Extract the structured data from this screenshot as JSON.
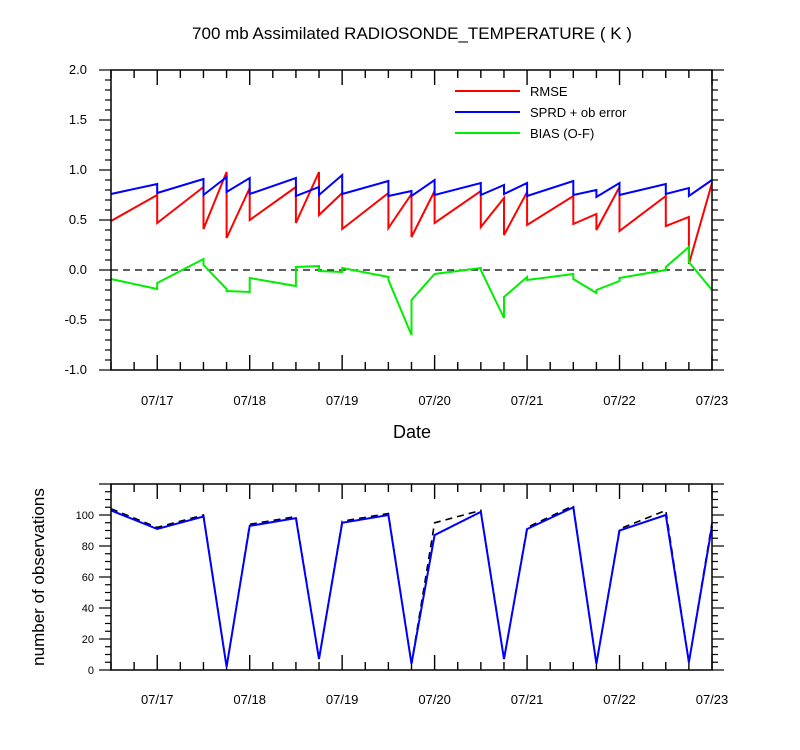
{
  "chart_data": [
    {
      "type": "line",
      "title": "700 mb Assimilated RADIOSONDE_TEMPERATURE ( K )",
      "xlabel": "Date",
      "ylabel": "",
      "xlim": [
        16.5,
        23.0
      ],
      "ylim": [
        -1.0,
        2.0
      ],
      "yticks": [
        -1.0,
        -0.5,
        0.0,
        0.5,
        1.0,
        1.5,
        2.0
      ],
      "ytick_labels": [
        "-1.0",
        "-0.5",
        "0.0",
        "0.5",
        "1.0",
        "1.5",
        "2.0"
      ],
      "xticks": [
        17,
        18,
        19,
        20,
        21,
        22,
        23
      ],
      "xtick_labels": [
        "07/17",
        "07/18",
        "07/19",
        "07/20",
        "07/21",
        "07/22",
        "07/23"
      ],
      "zero_line": {
        "value": 0.0,
        "style": "dashed"
      },
      "legend_position": "top-right",
      "series": [
        {
          "name": "RMSE",
          "color": "#ff0000",
          "x": [
            16.5,
            17.0,
            17.0,
            17.5,
            17.5,
            17.75,
            17.75,
            18.0,
            18.0,
            18.5,
            18.5,
            18.75,
            18.75,
            19.0,
            19.0,
            19.5,
            19.5,
            19.75,
            19.75,
            20.0,
            20.0,
            20.5,
            20.5,
            20.75,
            20.75,
            21.0,
            21.0,
            21.5,
            21.5,
            21.75,
            21.75,
            22.0,
            22.0,
            22.5,
            22.5,
            22.75,
            22.75,
            23.0
          ],
          "y": [
            0.49,
            0.75,
            0.47,
            0.83,
            0.41,
            0.98,
            0.32,
            0.82,
            0.5,
            0.83,
            0.47,
            0.98,
            0.55,
            0.77,
            0.41,
            0.77,
            0.42,
            0.76,
            0.33,
            0.79,
            0.47,
            0.79,
            0.43,
            0.72,
            0.35,
            0.78,
            0.45,
            0.74,
            0.46,
            0.56,
            0.4,
            0.83,
            0.39,
            0.74,
            0.44,
            0.53,
            0.06,
            0.87
          ]
        },
        {
          "name": "SPRD + ob error",
          "color": "#0000ff",
          "x": [
            16.5,
            17.0,
            17.0,
            17.5,
            17.5,
            17.75,
            17.75,
            18.0,
            18.0,
            18.5,
            18.5,
            18.75,
            18.75,
            19.0,
            19.0,
            19.5,
            19.5,
            19.75,
            19.75,
            20.0,
            20.0,
            20.5,
            20.5,
            20.75,
            20.75,
            21.0,
            21.0,
            21.5,
            21.5,
            21.75,
            21.75,
            22.0,
            22.0,
            22.5,
            22.5,
            22.75,
            22.75,
            23.0
          ],
          "y": [
            0.76,
            0.86,
            0.77,
            0.91,
            0.75,
            0.93,
            0.78,
            0.92,
            0.76,
            0.92,
            0.74,
            0.83,
            0.75,
            0.95,
            0.76,
            0.89,
            0.74,
            0.79,
            0.74,
            0.9,
            0.75,
            0.87,
            0.75,
            0.85,
            0.76,
            0.87,
            0.74,
            0.89,
            0.75,
            0.8,
            0.73,
            0.87,
            0.75,
            0.86,
            0.76,
            0.82,
            0.74,
            0.9
          ]
        },
        {
          "name": "BIAS (O-F)",
          "color": "#00ee00",
          "x": [
            16.5,
            17.0,
            17.0,
            17.5,
            17.5,
            17.75,
            17.75,
            18.0,
            18.0,
            18.5,
            18.5,
            18.75,
            18.75,
            19.0,
            19.0,
            19.5,
            19.5,
            19.75,
            19.75,
            20.0,
            20.0,
            20.5,
            20.5,
            20.75,
            20.75,
            21.0,
            21.0,
            21.5,
            21.5,
            21.75,
            21.75,
            22.0,
            22.0,
            22.5,
            22.5,
            22.75,
            22.75,
            23.0
          ],
          "y": [
            -0.09,
            -0.19,
            -0.13,
            0.11,
            0.05,
            -0.19,
            -0.21,
            -0.22,
            -0.08,
            -0.16,
            0.03,
            0.04,
            -0.01,
            -0.02,
            0.02,
            -0.07,
            -0.1,
            -0.65,
            -0.3,
            -0.04,
            -0.04,
            0.02,
            0.0,
            -0.48,
            -0.27,
            -0.07,
            -0.1,
            -0.04,
            -0.09,
            -0.23,
            -0.2,
            -0.11,
            -0.08,
            0.0,
            0.03,
            0.23,
            0.08,
            -0.2
          ]
        }
      ]
    },
    {
      "type": "line",
      "title": "",
      "xlabel": "",
      "ylabel": "number of observations",
      "xlim": [
        16.5,
        23.0
      ],
      "ylim": [
        0,
        120
      ],
      "yticks": [
        0,
        20,
        40,
        60,
        80,
        100
      ],
      "ytick_labels": [
        "0",
        "20",
        "40",
        "60",
        "80",
        "100"
      ],
      "xticks": [
        17,
        18,
        19,
        20,
        21,
        22,
        23
      ],
      "xtick_labels": [
        "07/17",
        "07/18",
        "07/19",
        "07/20",
        "07/21",
        "07/22",
        "07/23"
      ],
      "series": [
        {
          "color": "#000000",
          "style": "dashed",
          "x": [
            16.5,
            17.0,
            17.5,
            17.75,
            18.0,
            18.5,
            18.75,
            19.0,
            19.5,
            19.75,
            20.0,
            20.5,
            20.75,
            21.0,
            21.5,
            21.75,
            22.0,
            22.5,
            22.75,
            23.0
          ],
          "y": [
            104,
            92,
            100,
            2,
            94,
            99,
            7,
            96,
            101,
            4,
            95,
            103,
            7,
            92,
            106,
            4,
            91,
            103,
            5,
            95
          ]
        },
        {
          "color": "#0000ff",
          "style": "solid",
          "x": [
            16.5,
            17.0,
            17.5,
            17.75,
            18.0,
            18.5,
            18.75,
            19.0,
            19.5,
            19.75,
            20.0,
            20.5,
            20.75,
            21.0,
            21.5,
            21.75,
            22.0,
            22.5,
            22.75,
            23.0
          ],
          "y": [
            103,
            91,
            99,
            2,
            93,
            98,
            7,
            95,
            100,
            4,
            87,
            102,
            7,
            91,
            105,
            4,
            90,
            100,
            5,
            93
          ]
        }
      ]
    }
  ]
}
